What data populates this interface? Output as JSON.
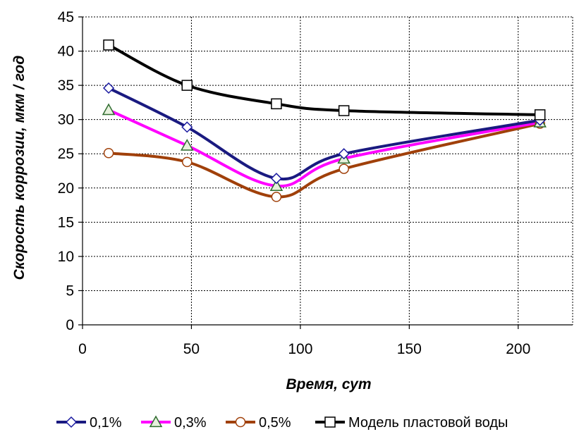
{
  "chart_data": {
    "type": "line",
    "title": "",
    "xlabel": "Время, сут",
    "ylabel": "Скорость коррозии, мкм / год",
    "xlim": [
      0,
      225
    ],
    "ylim": [
      0,
      45
    ],
    "xticks": [
      0,
      50,
      100,
      150,
      200
    ],
    "yticks": [
      0,
      5,
      10,
      15,
      20,
      25,
      30,
      35,
      40,
      45
    ],
    "grid": true,
    "legend_position": "bottom",
    "series": [
      {
        "name": "0,1%",
        "marker": "diamond",
        "color": "#1a1a80",
        "x": [
          12,
          48,
          89,
          120,
          210
        ],
        "y": [
          34.6,
          28.9,
          21.4,
          25.0,
          29.9
        ]
      },
      {
        "name": "0,3%",
        "marker": "triangle",
        "color": "#ff00ff",
        "x": [
          12,
          48,
          89,
          120,
          210
        ],
        "y": [
          31.4,
          26.2,
          20.3,
          24.3,
          29.6
        ]
      },
      {
        "name": "0,5%",
        "marker": "circle",
        "color": "#a0400a",
        "x": [
          12,
          48,
          89,
          120,
          210
        ],
        "y": [
          25.1,
          23.8,
          18.7,
          22.8,
          29.4
        ]
      },
      {
        "name": "Модель пластовой воды",
        "marker": "square",
        "color": "#000000",
        "x": [
          12,
          48,
          89,
          120,
          210
        ],
        "y": [
          40.9,
          35.0,
          32.3,
          31.3,
          30.7
        ]
      }
    ]
  },
  "colors": {
    "triangle_marker_fill": "#e6f0dc",
    "triangle_marker_stroke": "#2e6b2e",
    "diamond_marker_stroke": "#1a1aa0",
    "circle_marker_stroke": "#a0400a"
  }
}
